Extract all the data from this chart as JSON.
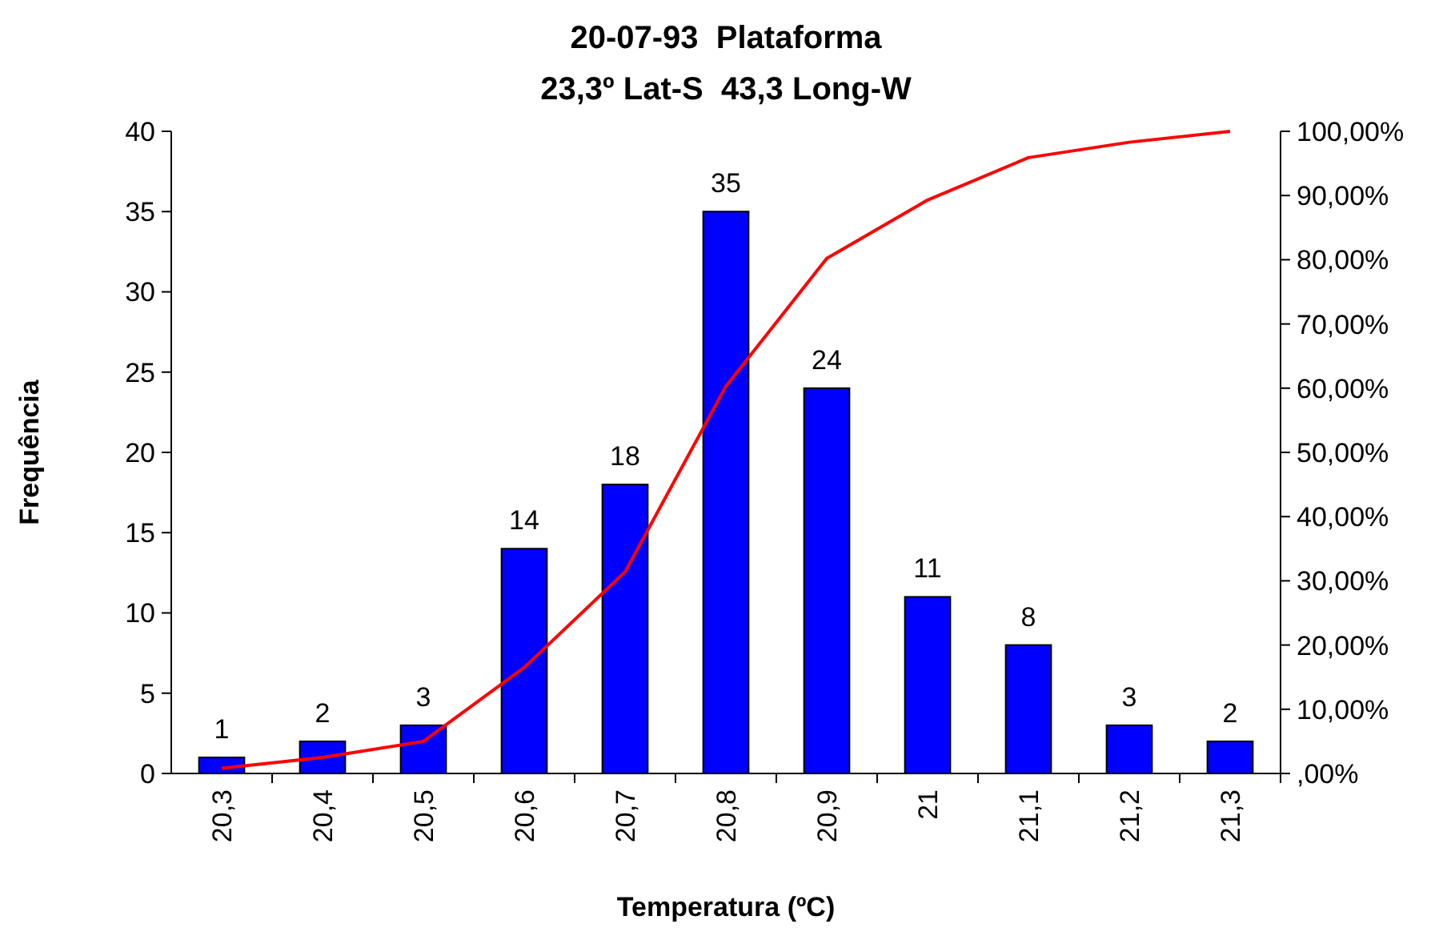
{
  "chart_data": {
    "type": "bar",
    "title": "20-07-93  Plataforma",
    "subtitle": "23,3º Lat-S  43,3 Long-W",
    "xlabel": "Temperatura (ºC)",
    "ylabel": "Frequência",
    "categories": [
      "20,3",
      "20,4",
      "20,5",
      "20,6",
      "20,7",
      "20,8",
      "20,9",
      "21",
      "21,1",
      "21,2",
      "21,3"
    ],
    "series": [
      {
        "color": "#0000ff",
        "values": [
          1,
          2,
          3,
          14,
          18,
          35,
          24,
          11,
          8,
          3,
          2
        ],
        "value_labels": [
          "1",
          "2",
          "3",
          "14",
          "18",
          "35",
          "24",
          "11",
          "8",
          "3",
          "2"
        ]
      },
      {
        "type": "line",
        "axis": "y2",
        "color": "#ff0000",
        "values": [
          0.8,
          2.5,
          5,
          16.5,
          31.4,
          60.3,
          80.2,
          89.3,
          95.9,
          98.3,
          100
        ]
      }
    ],
    "ylim": [
      0,
      40
    ],
    "yticks": [
      0,
      5,
      10,
      15,
      20,
      25,
      30,
      35,
      40
    ],
    "y2lim": [
      0,
      100
    ],
    "y2ticks": [
      {
        "value": 0,
        "label": ",00%"
      },
      {
        "value": 10,
        "label": "10,00%"
      },
      {
        "value": 20,
        "label": "20,00%"
      },
      {
        "value": 30,
        "label": "30,00%"
      },
      {
        "value": 40,
        "label": "40,00%"
      },
      {
        "value": 50,
        "label": "50,00%"
      },
      {
        "value": 60,
        "label": "60,00%"
      },
      {
        "value": 70,
        "label": "70,00%"
      },
      {
        "value": 80,
        "label": "80,00%"
      },
      {
        "value": 90,
        "label": "90,00%"
      },
      {
        "value": 100,
        "label": "100,00%"
      }
    ],
    "grid": false,
    "marker": "none",
    "line_style": "solid"
  }
}
